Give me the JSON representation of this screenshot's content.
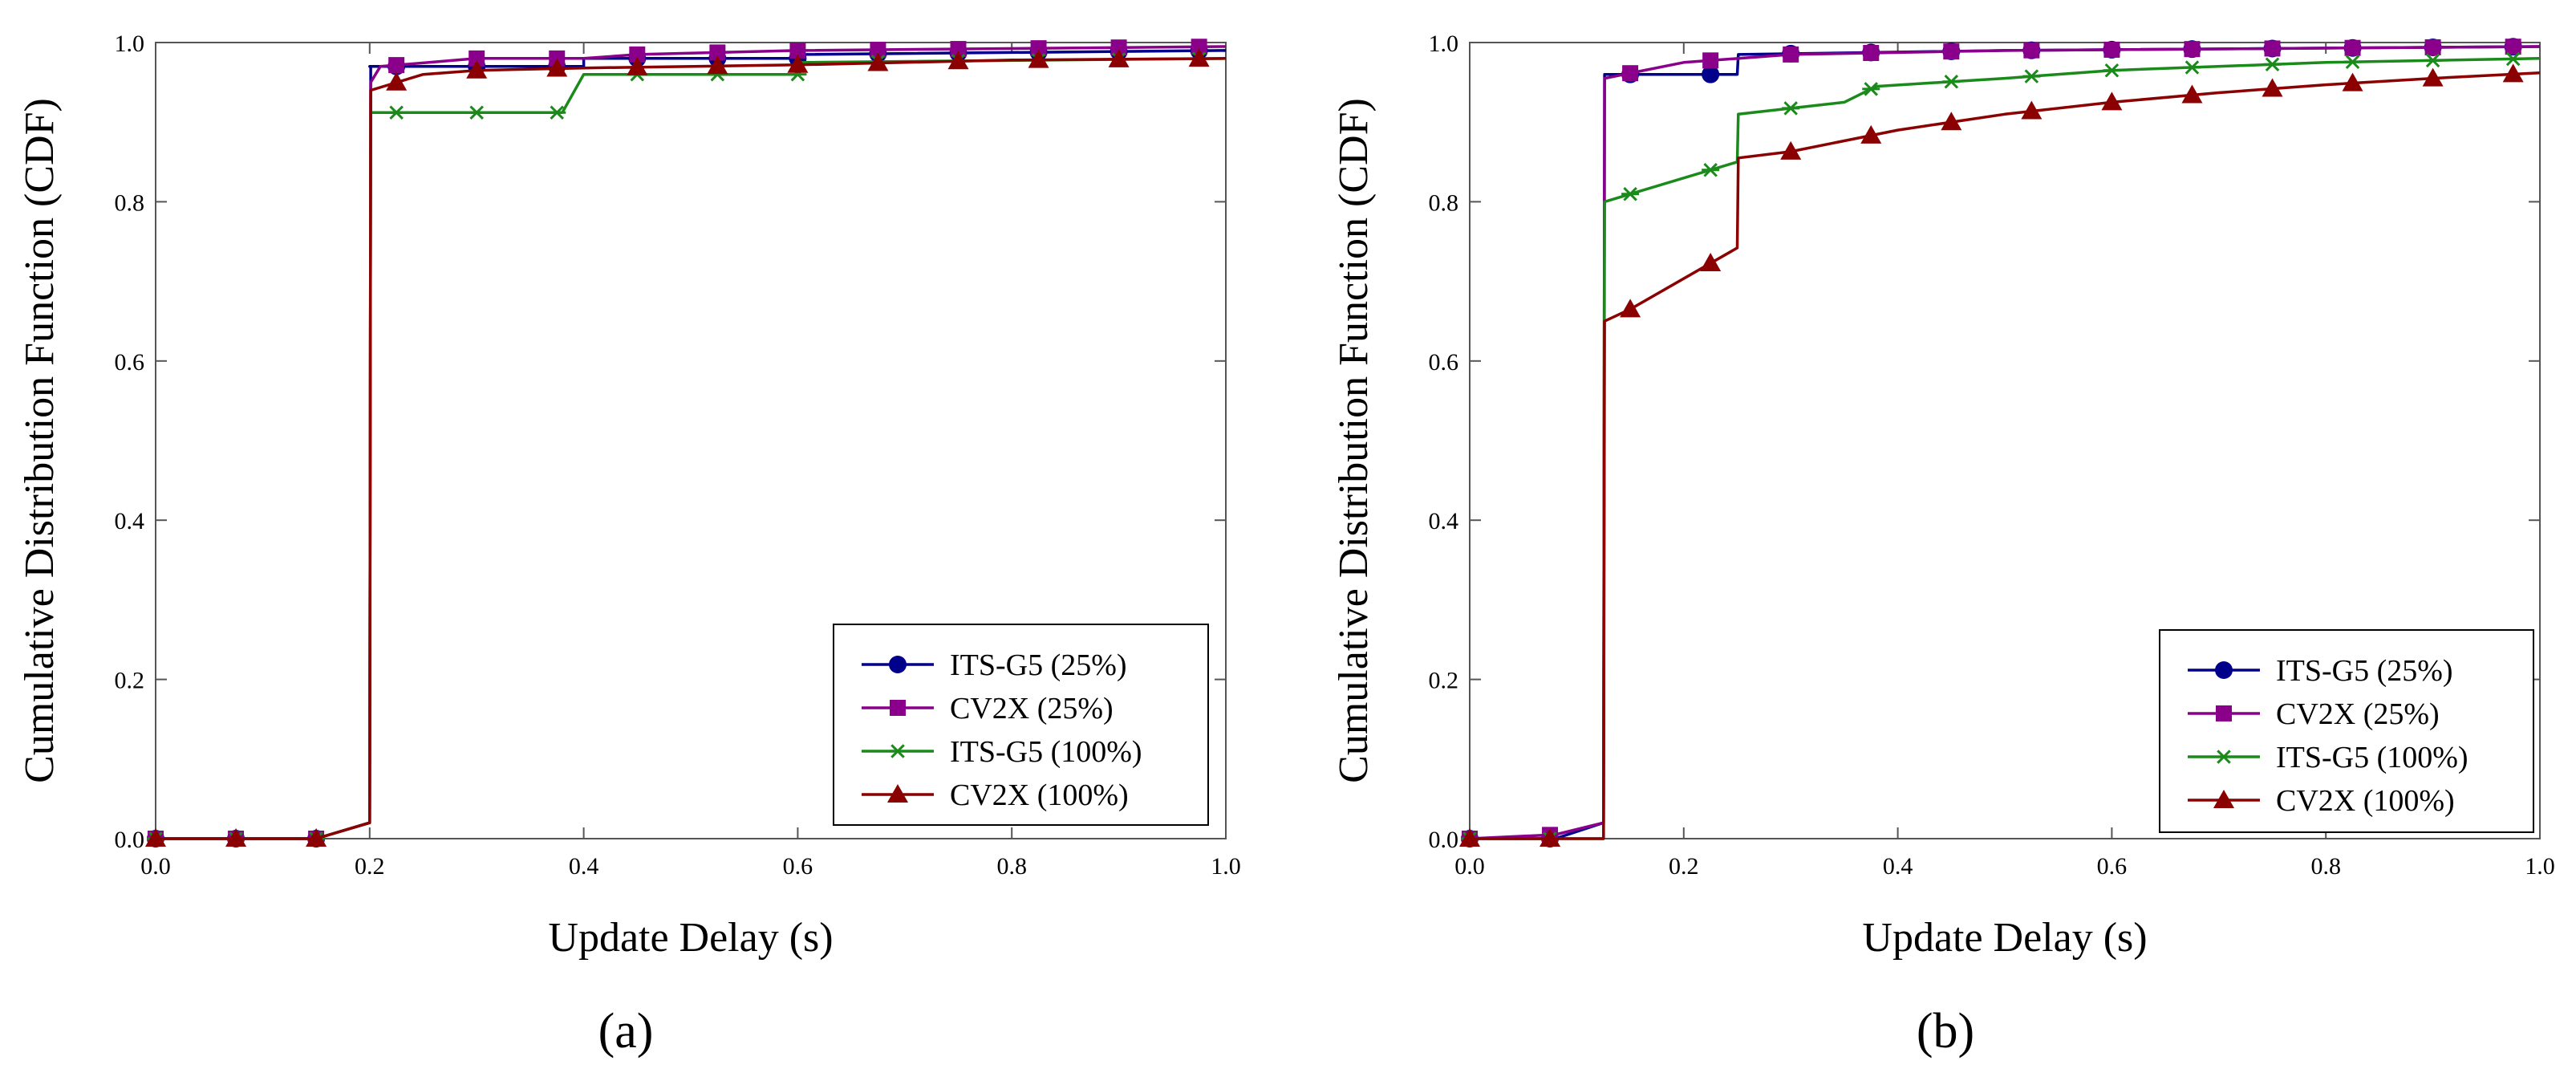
{
  "chart_data": [
    {
      "type": "line",
      "panel_label": "a",
      "panel_label_display": "(a)",
      "xlabel": "Update Delay (s)",
      "ylabel": "Cumulative Distribution Function (CDF)",
      "xlim": [
        0,
        1
      ],
      "ylim": [
        0,
        1
      ],
      "xticks": [
        "0.0",
        "0.2",
        "0.4",
        "0.6",
        "0.8",
        "1.0"
      ],
      "yticks": [
        "0.0",
        "0.2",
        "0.4",
        "0.6",
        "0.8",
        "1.0"
      ],
      "grid": false,
      "legend_position": "bottom-right",
      "markers_x": [
        0.0,
        0.075,
        0.15,
        0.225,
        0.3,
        0.375,
        0.45,
        0.525,
        0.6,
        0.675,
        0.75,
        0.825,
        0.9,
        0.975
      ],
      "series": [
        {
          "name": "ITS-G5 (25%)",
          "marker": "circle",
          "color": "#00008b",
          "x": [
            0.0,
            0.15,
            0.2,
            0.201,
            0.2,
            0.4,
            0.4,
            0.6,
            0.6,
            1.0
          ],
          "y": [
            0.0,
            0.0,
            0.02,
            0.97,
            0.97,
            0.97,
            0.98,
            0.98,
            0.985,
            0.99
          ]
        },
        {
          "name": "CV2X (25%)",
          "marker": "square",
          "color": "#8b008b",
          "x": [
            0.0,
            0.15,
            0.2,
            0.201,
            0.21,
            0.3,
            0.4,
            0.45,
            0.6,
            1.0
          ],
          "y": [
            0.0,
            0.0,
            0.02,
            0.95,
            0.97,
            0.98,
            0.98,
            0.985,
            0.99,
            0.995
          ]
        },
        {
          "name": "ITS-G5 (100%)",
          "marker": "asterisk",
          "color": "#1a8a1a",
          "x": [
            0.0,
            0.15,
            0.2,
            0.201,
            0.38,
            0.4,
            0.6,
            0.601,
            1.0
          ],
          "y": [
            0.0,
            0.0,
            0.02,
            0.912,
            0.912,
            0.96,
            0.96,
            0.975,
            0.98
          ]
        },
        {
          "name": "CV2X (100%)",
          "marker": "triangle",
          "color": "#8b0000",
          "x": [
            0.0,
            0.15,
            0.2,
            0.201,
            0.25,
            0.3,
            0.4,
            0.6,
            0.8,
            1.0
          ],
          "y": [
            0.0,
            0.0,
            0.02,
            0.94,
            0.96,
            0.965,
            0.968,
            0.972,
            0.978,
            0.98
          ]
        }
      ]
    },
    {
      "type": "line",
      "panel_label": "b",
      "panel_label_display": "(b)",
      "xlabel": "Update Delay (s)",
      "ylabel": "Cumulative Distribution Function (CDF)",
      "xlim": [
        0,
        1
      ],
      "ylim": [
        0,
        1
      ],
      "xticks": [
        "0.0",
        "0.2",
        "0.4",
        "0.6",
        "0.8",
        "1.0"
      ],
      "yticks": [
        "0.0",
        "0.2",
        "0.4",
        "0.6",
        "0.8",
        "1.0"
      ],
      "grid": false,
      "legend_position": "bottom-right",
      "markers_x": [
        0.0,
        0.075,
        0.15,
        0.225,
        0.3,
        0.375,
        0.45,
        0.525,
        0.6,
        0.675,
        0.75,
        0.825,
        0.9,
        0.975
      ],
      "series": [
        {
          "name": "ITS-G5 (25%)",
          "marker": "circle",
          "color": "#00008b",
          "x": [
            0.0,
            0.08,
            0.125,
            0.126,
            0.25,
            0.251,
            0.5,
            1.0
          ],
          "y": [
            0.0,
            0.0,
            0.02,
            0.96,
            0.96,
            0.985,
            0.99,
            0.995
          ]
        },
        {
          "name": "CV2X (25%)",
          "marker": "square",
          "color": "#8b008b",
          "x": [
            0.0,
            0.08,
            0.125,
            0.126,
            0.2,
            0.3,
            0.5,
            1.0
          ],
          "y": [
            0.0,
            0.005,
            0.02,
            0.955,
            0.975,
            0.985,
            0.99,
            0.995
          ]
        },
        {
          "name": "ITS-G5 (100%)",
          "marker": "asterisk",
          "color": "#1a8a1a",
          "x": [
            0.0,
            0.08,
            0.125,
            0.126,
            0.25,
            0.251,
            0.35,
            0.38,
            0.5,
            0.6,
            0.8,
            1.0
          ],
          "y": [
            0.0,
            0.0,
            0.0,
            0.8,
            0.85,
            0.91,
            0.925,
            0.945,
            0.955,
            0.965,
            0.975,
            0.98
          ]
        },
        {
          "name": "CV2X (100%)",
          "marker": "triangle",
          "color": "#8b0000",
          "x": [
            0.0,
            0.08,
            0.125,
            0.126,
            0.15,
            0.25,
            0.251,
            0.3,
            0.4,
            0.5,
            0.6,
            0.7,
            0.8,
            0.9,
            1.0
          ],
          "y": [
            0.0,
            0.0,
            0.0,
            0.65,
            0.665,
            0.742,
            0.855,
            0.863,
            0.89,
            0.91,
            0.925,
            0.937,
            0.947,
            0.955,
            0.962
          ]
        }
      ]
    }
  ]
}
